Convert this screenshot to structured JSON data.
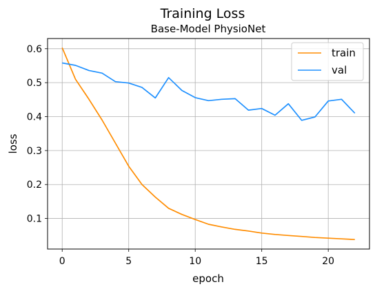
{
  "chart_data": {
    "type": "line",
    "title": "Training Loss",
    "subtitle": "Base-Model PhysioNet",
    "xlabel": "epoch",
    "ylabel": "loss",
    "xlim": [
      -1.1,
      23.1
    ],
    "ylim": [
      0.01,
      0.63
    ],
    "xticks": [
      0,
      5,
      10,
      15,
      20
    ],
    "yticks": [
      0.1,
      0.2,
      0.3,
      0.4,
      0.5,
      0.6
    ],
    "grid": true,
    "legend": "top-right",
    "x": [
      0,
      1,
      2,
      3,
      4,
      5,
      6,
      7,
      8,
      9,
      10,
      11,
      12,
      13,
      14,
      15,
      16,
      17,
      18,
      19,
      20,
      21,
      22
    ],
    "series": [
      {
        "name": "train",
        "color": "#ff8c00",
        "values": [
          0.603,
          0.51,
          0.452,
          0.39,
          0.322,
          0.254,
          0.2,
          0.163,
          0.13,
          0.112,
          0.097,
          0.083,
          0.075,
          0.068,
          0.063,
          0.057,
          0.053,
          0.05,
          0.047,
          0.044,
          0.042,
          0.04,
          0.038
        ]
      },
      {
        "name": "val",
        "color": "#1e90ff",
        "values": [
          0.558,
          0.551,
          0.536,
          0.528,
          0.503,
          0.499,
          0.486,
          0.455,
          0.515,
          0.477,
          0.456,
          0.447,
          0.451,
          0.453,
          0.419,
          0.424,
          0.404,
          0.438,
          0.389,
          0.399,
          0.446,
          0.451,
          0.41
        ]
      }
    ]
  }
}
